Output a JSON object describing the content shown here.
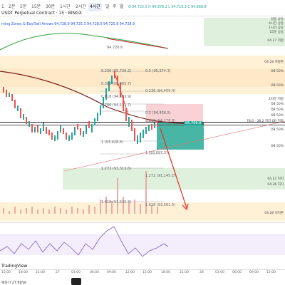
{
  "toolbar": {
    "timeframes": [
      "1",
      "2분",
      "5분",
      "15분",
      "30분",
      "1시간",
      "2시간",
      "4시간",
      "일",
      "주",
      "월"
    ],
    "active_timeframe": "4시간",
    "symbol_title": "USDT Perpetual Contract · 15 · BINGX",
    "ohlc": "O 94,725.5  H 94,878.2  L 94,719.3  C 94,868.8"
  },
  "indicator_legend": "rning Zones & Buy/Sell Arrows  94,728.9  94,725.3  94,728.0  94,725.8  94,728.9",
  "price_axis_top_value": "94,726.6",
  "price_label_teal": "95,708.8",
  "fib_labels": [
    {
      "text": "0.236 (95,726.2)"
    },
    {
      "text": "0.5 (95,374.3)"
    },
    {
      "text": "0.382 (95,065.7)"
    },
    {
      "text": "0.236 (94,409.4)"
    },
    {
      "text": "0.618 (94,813.9)"
    },
    {
      "text": "0.5 (94,436.5)"
    },
    {
      "text": "0.786 (94,111.7)"
    },
    {
      "text": "0.618 (94,178.8)"
    },
    {
      "text": "1 (93,928.8)"
    },
    {
      "text": "1 (93,097.3)"
    },
    {
      "text": "1.272 (93,313.6)"
    },
    {
      "text": "1.272 (91,145.2)"
    },
    {
      "text": "1.618 (91,543.3)"
    },
    {
      "text": "1.618 (93,561.5)"
    }
  ],
  "right_labels": [
    {
      "text": "일봉 상승"
    },
    {
      "text": "4시간 상승"
    },
    {
      "text": "1시간 상승"
    },
    {
      "text": "15분 상승"
    },
    {
      "text": "04.27 저항"
    },
    {
      "text": "04.28 저항존"
    },
    {
      "text": "OB 50%"
    },
    {
      "text": "OB 50%"
    },
    {
      "text": "1차분 저항"
    },
    {
      "text": "OB 50%"
    },
    {
      "text": "OB 50%"
    },
    {
      "text": "OB 50%"
    },
    {
      "text": "78.6 - 38.2 지지 OR 저항"
    },
    {
      "text": "OB 50%"
    },
    {
      "text": "OB 50%"
    },
    {
      "text": "04.27 지지"
    },
    {
      "text": "04.26 지지"
    },
    {
      "text": "04.28 지지존"
    }
  ],
  "x_axis": [
    "15:00",
    "18:00",
    "21:00",
    "27",
    "03:00",
    "06:00",
    "09:00",
    "12:00",
    "15:00",
    "18:00",
    "21:00",
    "28",
    "03:00",
    "06:00",
    "09:00",
    "12:00"
  ],
  "branding": "TradingView",
  "footer_text": "택하기 27.9만원·",
  "colors": {
    "accent": "#1e53e5",
    "up": "#26a69a",
    "down": "#ef5350",
    "arrow": "#e53935"
  }
}
